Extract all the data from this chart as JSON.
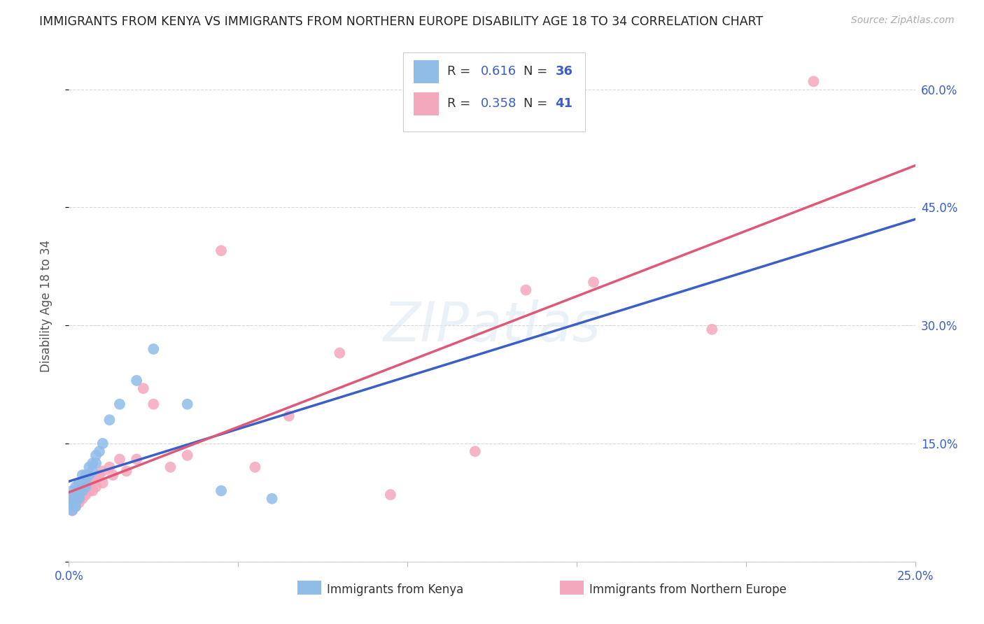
{
  "title": "IMMIGRANTS FROM KENYA VS IMMIGRANTS FROM NORTHERN EUROPE DISABILITY AGE 18 TO 34 CORRELATION CHART",
  "source": "Source: ZipAtlas.com",
  "ylabel": "Disability Age 18 to 34",
  "xlabel_legend1": "Immigrants from Kenya",
  "xlabel_legend2": "Immigrants from Northern Europe",
  "r_kenya": 0.616,
  "n_kenya": 36,
  "r_northern": 0.358,
  "n_northern": 41,
  "xlim": [
    0.0,
    0.25
  ],
  "ylim": [
    0.0,
    0.65
  ],
  "xticks": [
    0.0,
    0.05,
    0.1,
    0.15,
    0.2,
    0.25
  ],
  "yticks": [
    0.0,
    0.15,
    0.3,
    0.45,
    0.6
  ],
  "ytick_labels_right": [
    "",
    "15.0%",
    "30.0%",
    "45.0%",
    "60.0%"
  ],
  "color_kenya": "#90bce8",
  "color_northern": "#f4a8bc",
  "color_kenya_line": "#3a5fc8",
  "color_northern_line": "#e05878",
  "color_dashed": "#b0b8c8",
  "kenya_x": [
    0.001,
    0.001,
    0.001,
    0.001,
    0.001,
    0.002,
    0.002,
    0.002,
    0.002,
    0.002,
    0.003,
    0.003,
    0.003,
    0.003,
    0.004,
    0.004,
    0.004,
    0.004,
    0.005,
    0.005,
    0.005,
    0.006,
    0.006,
    0.007,
    0.007,
    0.008,
    0.008,
    0.009,
    0.01,
    0.012,
    0.015,
    0.02,
    0.025,
    0.035,
    0.045,
    0.06
  ],
  "kenya_y": [
    0.065,
    0.07,
    0.075,
    0.08,
    0.09,
    0.07,
    0.075,
    0.08,
    0.085,
    0.095,
    0.08,
    0.085,
    0.09,
    0.1,
    0.09,
    0.095,
    0.1,
    0.11,
    0.095,
    0.1,
    0.11,
    0.11,
    0.12,
    0.115,
    0.125,
    0.125,
    0.135,
    0.14,
    0.15,
    0.18,
    0.2,
    0.23,
    0.27,
    0.2,
    0.09,
    0.08
  ],
  "northern_x": [
    0.001,
    0.001,
    0.001,
    0.002,
    0.002,
    0.002,
    0.003,
    0.003,
    0.003,
    0.004,
    0.004,
    0.005,
    0.005,
    0.006,
    0.006,
    0.007,
    0.007,
    0.008,
    0.008,
    0.009,
    0.01,
    0.01,
    0.012,
    0.013,
    0.015,
    0.017,
    0.02,
    0.022,
    0.025,
    0.03,
    0.035,
    0.045,
    0.055,
    0.065,
    0.08,
    0.095,
    0.12,
    0.135,
    0.155,
    0.19,
    0.22
  ],
  "northern_y": [
    0.065,
    0.075,
    0.08,
    0.07,
    0.075,
    0.085,
    0.075,
    0.08,
    0.09,
    0.08,
    0.09,
    0.085,
    0.095,
    0.09,
    0.1,
    0.09,
    0.1,
    0.095,
    0.105,
    0.11,
    0.1,
    0.115,
    0.12,
    0.11,
    0.13,
    0.115,
    0.13,
    0.22,
    0.2,
    0.12,
    0.135,
    0.395,
    0.12,
    0.185,
    0.265,
    0.085,
    0.14,
    0.345,
    0.355,
    0.295,
    0.61
  ],
  "watermark": "ZIPatlas",
  "background_color": "#ffffff",
  "grid_color": "#d8d8d8"
}
